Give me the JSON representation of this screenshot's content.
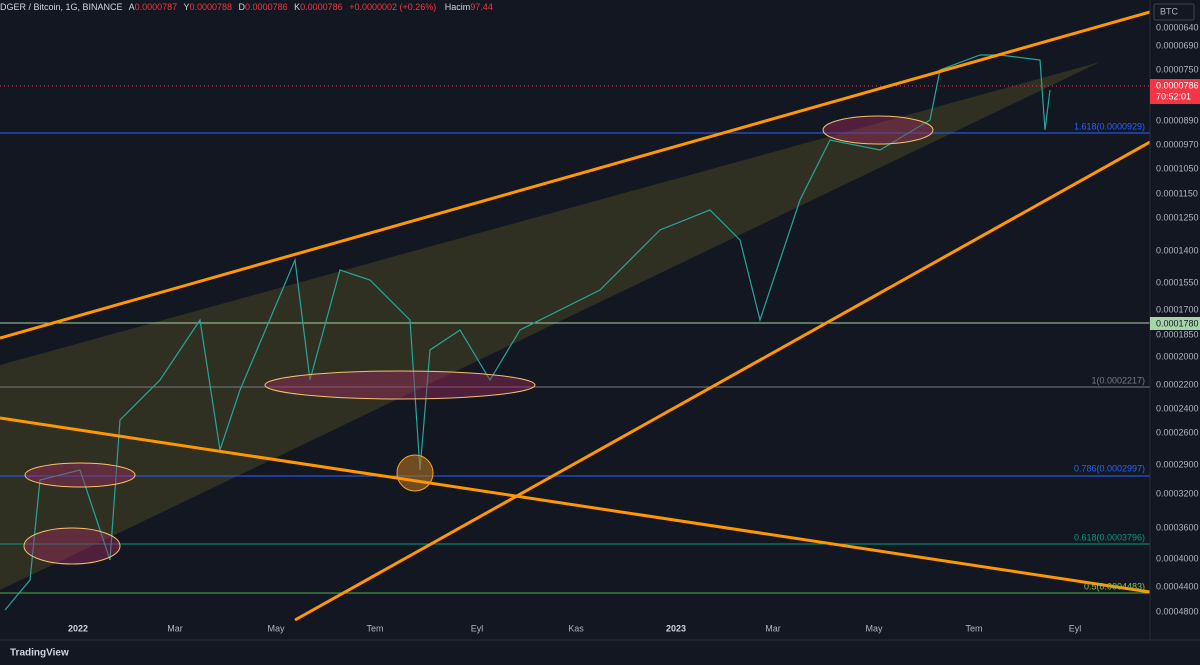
{
  "header": {
    "symbol": "DGER / Bitcoin, 1G, BINANCE",
    "open_label": "A",
    "open": "0.0000787",
    "high_label": "Y",
    "high": "0.0000788",
    "low_label": "D",
    "low": "0.0000786",
    "close_label": "K",
    "close": "0.0000786",
    "change": "+0.0000002 (+0.26%)",
    "volume_label": "Hacim",
    "volume": "97.44"
  },
  "currency": "BTC",
  "price_axis": [
    "0.0000640",
    "0.0000690",
    "0.0000750",
    "0.0000890",
    "0.0000970",
    "0.0001050",
    "0.0001150",
    "0.0001250",
    "0.0001400",
    "0.0001550",
    "0.0001700",
    "0.0001850",
    "0.0002000",
    "0.0002200",
    "0.0002400",
    "0.0002600",
    "0.0002900",
    "0.0003200",
    "0.0003600",
    "0.0004000",
    "0.0004400",
    "0.0004800"
  ],
  "current_price": {
    "price": "0.0000786",
    "countdown": "70:52:01"
  },
  "level_tag": "0.0001780",
  "time_axis": [
    "2022",
    "Mar",
    "May",
    "Tem",
    "Eyl",
    "Kas",
    "2023",
    "Mar",
    "May",
    "Tem",
    "Eyl"
  ],
  "fib_levels": [
    "1.618(0.0000929)",
    "1(0.0002217)",
    "0.786(0.0002997)",
    "0.618(0.0003796)",
    "0.5(0.0004483)"
  ],
  "brand": "TradingView"
}
